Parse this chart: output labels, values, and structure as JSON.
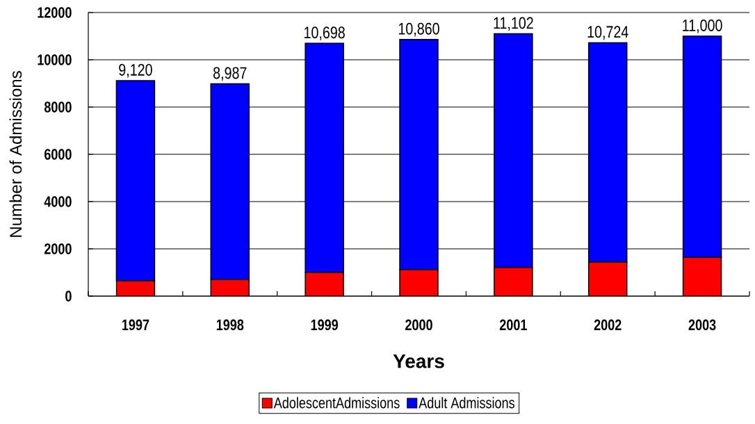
{
  "chart_data": {
    "type": "bar",
    "xlabel": "Years",
    "ylabel": "Number of Admissions",
    "categories": [
      "1997",
      "1998",
      "1999",
      "2000",
      "2001",
      "2002",
      "2003"
    ],
    "series": [
      {
        "name": "AdolescentAdmissions",
        "color": "#ff0000",
        "values": [
          650,
          700,
          1000,
          1120,
          1210,
          1440,
          1640
        ]
      },
      {
        "name": "Adult Admissions",
        "color": "#0000ff",
        "values": [
          8470,
          8287,
          9698,
          9740,
          9892,
          9284,
          9360
        ]
      }
    ],
    "stacked": true,
    "totals": [
      "9,120",
      "8,987",
      "10,698",
      "10,860",
      "11,102",
      "10,724",
      "11,000"
    ],
    "ylim": [
      0,
      12000
    ],
    "yticks": [
      0,
      2000,
      4000,
      6000,
      8000,
      10000,
      12000
    ],
    "grid": "y",
    "legend": "bottom"
  }
}
